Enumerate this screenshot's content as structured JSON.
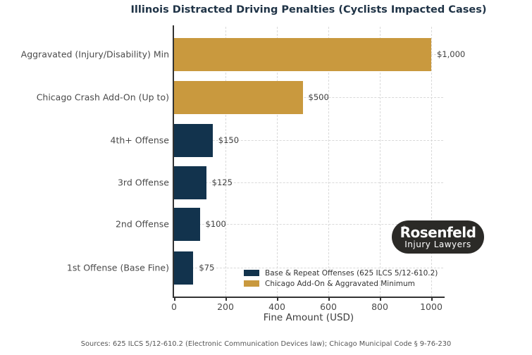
{
  "title": "Illinois Distracted Driving Penalties (Cyclists Impacted Cases)",
  "chart_data": {
    "type": "bar",
    "orientation": "horizontal",
    "title": "Illinois Distracted Driving Penalties (Cyclists Impacted Cases)",
    "xlabel": "Fine Amount (USD)",
    "ylabel": "",
    "xlim": [
      0,
      1046
    ],
    "xticks": [
      0,
      200,
      400,
      600,
      800,
      1000
    ],
    "grid": "dashed gridlines on both axes",
    "legend_position": "lower right inside plot",
    "bars": [
      {
        "category": "Aggravated (Injury/Disability) Min",
        "value": 1000,
        "label": "$1,000",
        "series": "addon"
      },
      {
        "category": "Chicago Crash Add-On (Up to)",
        "value": 500,
        "label": "$500",
        "series": "addon"
      },
      {
        "category": "4th+ Offense",
        "value": 150,
        "label": "$150",
        "series": "base"
      },
      {
        "category": "3rd Offense",
        "value": 125,
        "label": "$125",
        "series": "base"
      },
      {
        "category": "2nd Offense",
        "value": 100,
        "label": "$100",
        "series": "base"
      },
      {
        "category": "1st Offense (Base Fine)",
        "value": 75,
        "label": "$75",
        "series": "base"
      }
    ],
    "series": [
      {
        "key": "base",
        "name": "Base & Repeat Offenses (625 ILCS 5/12-610.2)",
        "color": "#12334D"
      },
      {
        "key": "addon",
        "name": "Chicago Add-On & Aggravated Minimum",
        "color": "#C9993E"
      }
    ]
  },
  "logo": {
    "star": "✶",
    "line1": "Rosenfeld",
    "line2": "Injury Lawyers"
  },
  "source": "Sources: 625 ILCS 5/12-610.2 (Electronic Communication Devices law); Chicago Municipal Code § 9-76-230",
  "colors": {
    "navy": "#12334D",
    "gold": "#C9993E",
    "title_text": "#203447",
    "grid": "#D9D9D9",
    "spine": "#333333",
    "logo_bg": "#2B2A27"
  }
}
